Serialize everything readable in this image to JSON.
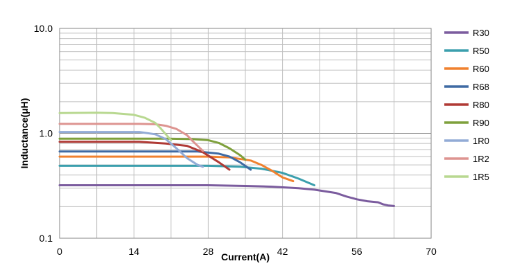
{
  "chart_data": {
    "type": "line",
    "xlabel": "Current(A)",
    "ylabel": "Inductance(μH)",
    "x_scale": "linear",
    "y_scale": "log",
    "xlim": [
      0,
      70
    ],
    "ylim": [
      0.1,
      10
    ],
    "x_ticks": [
      0,
      14,
      28,
      42,
      56,
      70
    ],
    "x_tick_labels": [
      "0",
      "14",
      "28",
      "42",
      "56",
      "70"
    ],
    "y_ticks": [
      0.1,
      1,
      10
    ],
    "y_tick_labels": [
      "0.1",
      "1.0",
      "10.0"
    ],
    "grid": true,
    "legend_position": "right",
    "series": [
      {
        "name": "R30",
        "color": "#7b5c9e",
        "x": [
          0,
          10,
          20,
          28,
          35,
          40,
          45,
          48,
          52,
          54,
          56,
          58,
          60,
          61,
          62,
          63
        ],
        "y": [
          0.32,
          0.32,
          0.32,
          0.32,
          0.315,
          0.31,
          0.3,
          0.29,
          0.27,
          0.25,
          0.235,
          0.225,
          0.22,
          0.21,
          0.205,
          0.203
        ]
      },
      {
        "name": "R50",
        "color": "#3b9fad",
        "x": [
          0,
          10,
          20,
          28,
          34,
          38,
          42,
          45,
          48
        ],
        "y": [
          0.49,
          0.49,
          0.49,
          0.49,
          0.48,
          0.46,
          0.42,
          0.37,
          0.32
        ]
      },
      {
        "name": "R60",
        "color": "#f0812f",
        "x": [
          0,
          10,
          20,
          28,
          32,
          36,
          38,
          40,
          42,
          44
        ],
        "y": [
          0.6,
          0.6,
          0.6,
          0.6,
          0.59,
          0.55,
          0.5,
          0.44,
          0.38,
          0.35
        ]
      },
      {
        "name": "R68",
        "color": "#3f6aa3",
        "x": [
          0,
          10,
          20,
          26,
          30,
          32,
          34,
          36
        ],
        "y": [
          0.67,
          0.67,
          0.67,
          0.67,
          0.64,
          0.6,
          0.53,
          0.45
        ]
      },
      {
        "name": "R80",
        "color": "#b03a35",
        "x": [
          0,
          10,
          15,
          20,
          24,
          27,
          30,
          32
        ],
        "y": [
          0.83,
          0.83,
          0.83,
          0.8,
          0.76,
          0.66,
          0.53,
          0.45
        ]
      },
      {
        "name": "R90",
        "color": "#7ea03c",
        "x": [
          0,
          10,
          20,
          25,
          28,
          30,
          32,
          34,
          35
        ],
        "y": [
          0.89,
          0.89,
          0.89,
          0.88,
          0.86,
          0.81,
          0.72,
          0.62,
          0.56
        ]
      },
      {
        "name": "1R0",
        "color": "#92abd6",
        "x": [
          0,
          10,
          15,
          18,
          20,
          22,
          24,
          26,
          27
        ],
        "y": [
          1.03,
          1.03,
          1.03,
          0.98,
          0.88,
          0.72,
          0.58,
          0.5,
          0.48
        ]
      },
      {
        "name": "1R2",
        "color": "#dd9490",
        "x": [
          0,
          10,
          15,
          18,
          20,
          22,
          24,
          25,
          27
        ],
        "y": [
          1.23,
          1.23,
          1.23,
          1.22,
          1.18,
          1.1,
          0.96,
          0.85,
          0.68
        ]
      },
      {
        "name": "1R5",
        "color": "#b8d890",
        "x": [
          0,
          7,
          10,
          14,
          16,
          18,
          19,
          20,
          21
        ],
        "y": [
          1.56,
          1.57,
          1.56,
          1.5,
          1.41,
          1.26,
          1.12,
          0.98,
          0.86
        ]
      }
    ]
  }
}
